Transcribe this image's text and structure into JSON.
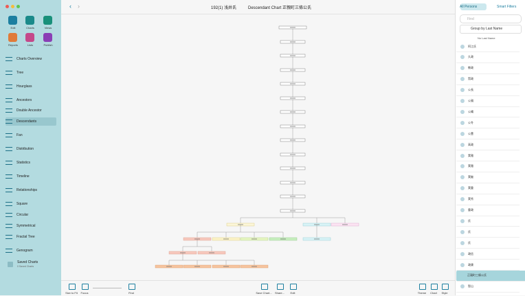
{
  "window": {
    "title": "192(1) 浅井氏",
    "chart_title": "Descendant Chart 正親町三條公氏"
  },
  "toolbar": [
    "Edit",
    "Charts",
    "Views",
    "Reports",
    "Lists",
    "Publish"
  ],
  "sidebar": [
    "Charts Overview",
    "Tree",
    "Hourglass",
    "Ancestors",
    "Double Ancestor",
    "Descendants",
    "Fan",
    "Distribution",
    "Statistics",
    "Timeline",
    "Relationships",
    "Square",
    "Circular",
    "Symmetrical",
    "Fractal Tree",
    "Genogram"
  ],
  "sidebar_selected": 5,
  "saved": {
    "label": "Saved Charts",
    "count": "0 Saved Charts"
  },
  "persons": {
    "tabs": [
      "All Persons",
      "Smart Filters"
    ],
    "search": "Find",
    "group": "Group by Last Name",
    "section": "No Last Name",
    "names": [
      "阿江氏",
      "久政",
      "教政",
      "賢政",
      "公長",
      "公親",
      "公縄",
      "公冬",
      "公豊",
      "高政",
      "実雅",
      "実雅",
      "実継",
      "実重",
      "実秀",
      "重政",
      "氏",
      "氏",
      "氏",
      "政信",
      "政康",
      "正親町三條公氏",
      "智山"
    ],
    "selected": 21
  },
  "bottom_left": [
    "Size to Fit",
    "Focus",
    "Find"
  ],
  "bottom_right": [
    "Save Chart...",
    "Share...",
    "Edit"
  ],
  "bottom_far": [
    "Theme",
    "Chart",
    "Style"
  ]
}
